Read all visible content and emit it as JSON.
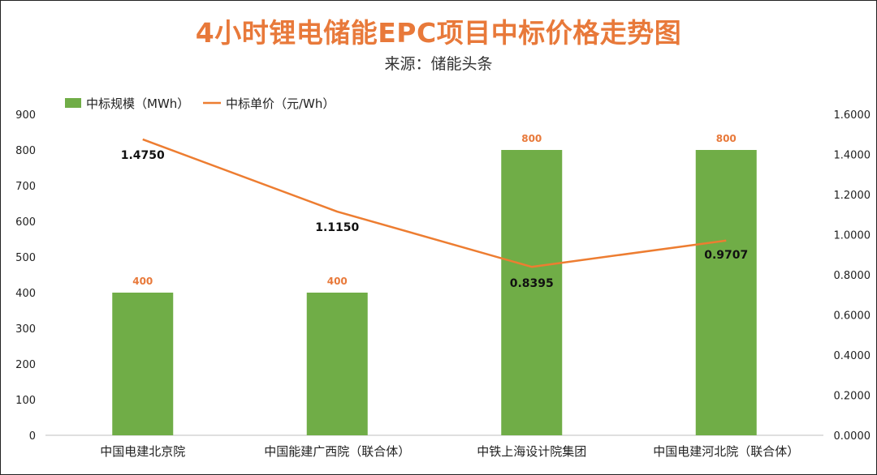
{
  "chart_data": {
    "type": "bar",
    "title": "4小时锂电储能EPC项目中标价格走势图",
    "subtitle": "来源：储能头条",
    "categories": [
      "中国电建北京院",
      "中国能建广西院（联合体）",
      "中铁上海设计院集团",
      "中国电建河北院（联合体）"
    ],
    "series": [
      {
        "name": "中标规模（MWh）",
        "type": "bar",
        "axis": "left",
        "color": "#70AD47",
        "values": [
          400,
          400,
          800,
          800
        ],
        "labels": [
          "400",
          "400",
          "800",
          "800"
        ]
      },
      {
        "name": "中标单价（元/Wh）",
        "type": "line",
        "axis": "right",
        "color": "#ED7D31",
        "values": [
          1.475,
          1.115,
          0.8395,
          0.9707
        ],
        "labels": [
          "1.4750",
          "1.1150",
          "0.8395",
          "0.9707"
        ]
      }
    ],
    "y_left": {
      "min": 0,
      "max": 900,
      "ticks": [
        "0",
        "100",
        "200",
        "300",
        "400",
        "500",
        "600",
        "700",
        "800",
        "900"
      ]
    },
    "y_right": {
      "min": 0,
      "max": 1.6,
      "ticks": [
        "0.0000",
        "0.2000",
        "0.4000",
        "0.6000",
        "0.8000",
        "1.0000",
        "1.2000",
        "1.4000",
        "1.6000"
      ]
    },
    "grid": false,
    "legend": "top-left"
  }
}
